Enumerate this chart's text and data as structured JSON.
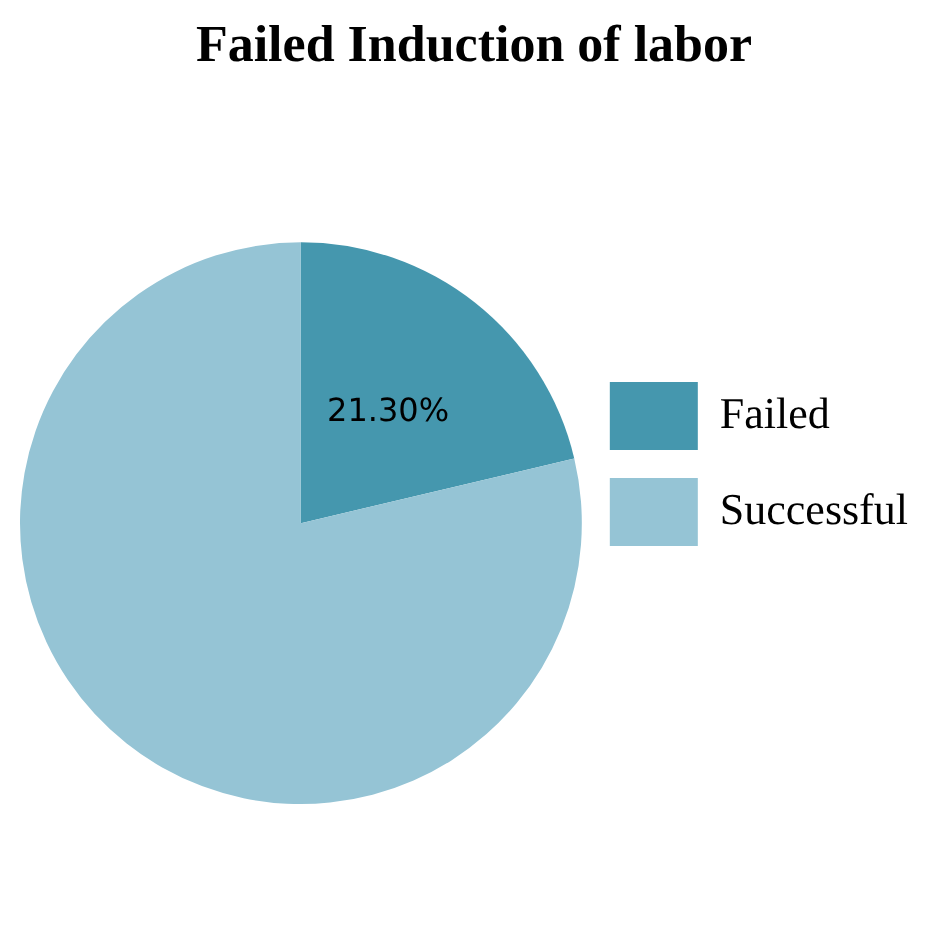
{
  "chart_data": {
    "type": "pie",
    "title": "Failed Induction of labor",
    "categories": [
      "Failed",
      "Successful"
    ],
    "values": [
      21.3,
      78.7
    ],
    "colors": [
      "#4597ae",
      "#95c4d5"
    ],
    "value_labels": [
      "21.30%",
      null
    ],
    "legend": "right"
  }
}
